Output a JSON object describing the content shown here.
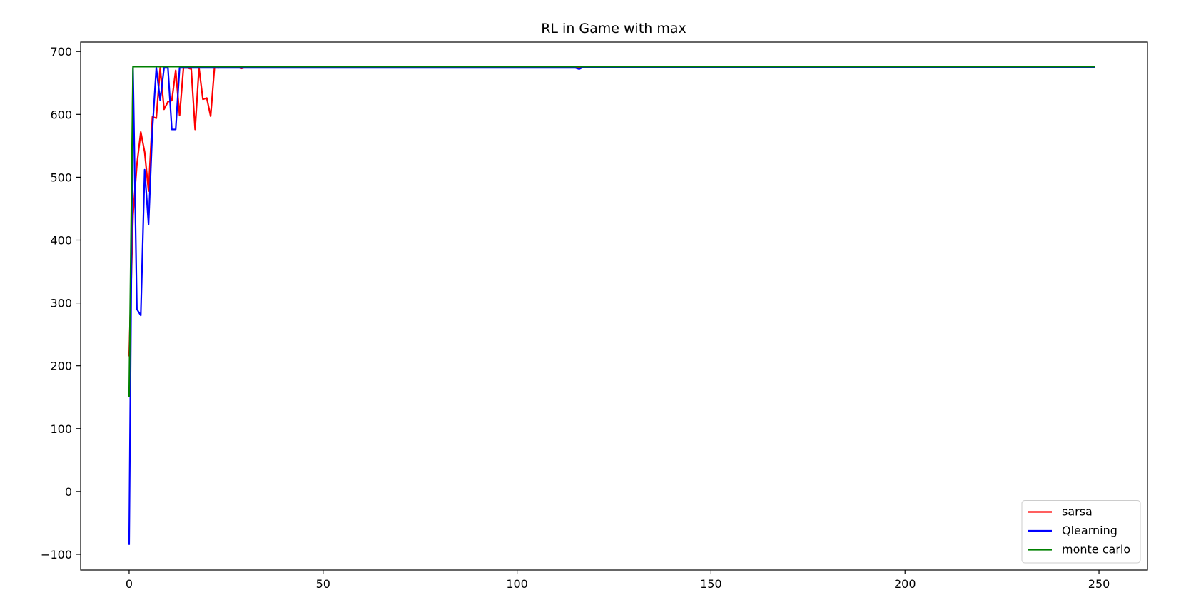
{
  "chart_data": {
    "type": "line",
    "title": "RL in Game with max",
    "xlabel": "",
    "ylabel": "",
    "xlim": [
      -12.5,
      262.5
    ],
    "ylim": [
      -125,
      715
    ],
    "xticks": [
      0,
      50,
      100,
      150,
      200,
      250
    ],
    "yticks": [
      -100,
      0,
      100,
      200,
      300,
      400,
      500,
      600,
      700
    ],
    "ytick_labels": [
      "−100",
      "0",
      "100",
      "200",
      "300",
      "400",
      "500",
      "600",
      "700"
    ],
    "grid": false,
    "legend_position": "lower-right",
    "series": [
      {
        "name": "sarsa",
        "color": "#ff0000",
        "points": [
          [
            0,
            215
          ],
          [
            1,
            440
          ],
          [
            2,
            520
          ],
          [
            3,
            572
          ],
          [
            4,
            540
          ],
          [
            5,
            478
          ],
          [
            6,
            596
          ],
          [
            7,
            594
          ],
          [
            8,
            674
          ],
          [
            9,
            608
          ],
          [
            10,
            620
          ],
          [
            11,
            622
          ],
          [
            12,
            670
          ],
          [
            13,
            598
          ],
          [
            14,
            674
          ],
          [
            15,
            674
          ],
          [
            16,
            672
          ],
          [
            17,
            576
          ],
          [
            18,
            674
          ],
          [
            19,
            624
          ],
          [
            20,
            626
          ],
          [
            21,
            597
          ],
          [
            22,
            675
          ],
          [
            23,
            674
          ],
          [
            24,
            675
          ],
          [
            28,
            675
          ],
          [
            29,
            673
          ],
          [
            30,
            675
          ],
          [
            249,
            675
          ]
        ]
      },
      {
        "name": "Qlearning",
        "color": "#0000ff",
        "points": [
          [
            0,
            -85
          ],
          [
            1,
            674
          ],
          [
            2,
            290
          ],
          [
            3,
            280
          ],
          [
            4,
            512
          ],
          [
            5,
            425
          ],
          [
            6,
            576
          ],
          [
            7,
            674
          ],
          [
            8,
            622
          ],
          [
            9,
            674
          ],
          [
            10,
            674
          ],
          [
            11,
            576
          ],
          [
            12,
            576
          ],
          [
            13,
            674
          ],
          [
            14,
            674
          ],
          [
            115,
            674
          ],
          [
            116,
            672
          ],
          [
            117,
            675
          ],
          [
            249,
            675
          ]
        ]
      },
      {
        "name": "monte carlo",
        "color": "#008000",
        "points": [
          [
            0,
            150
          ],
          [
            1,
            676
          ],
          [
            249,
            676
          ]
        ]
      }
    ]
  }
}
